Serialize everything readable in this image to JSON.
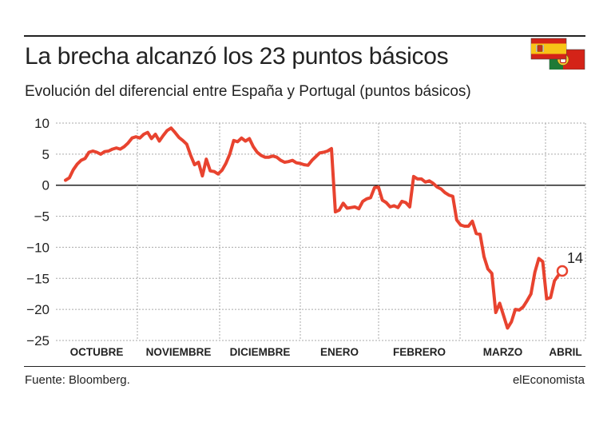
{
  "header": {
    "title": "La brecha alcanzó los 23 puntos básicos",
    "subtitle": "Evolución del diferencial entre España y Portugal (puntos básicos)"
  },
  "footer": {
    "source": "Fuente: Bloomberg.",
    "brand": "elEconomista"
  },
  "flags": [
    "spain-flag-icon",
    "portugal-flag-icon"
  ],
  "colors": {
    "line": "#e8432f",
    "grid": "#aaaaaa",
    "zero_line": "#222222",
    "text": "#222222"
  },
  "chart_data": {
    "type": "line",
    "title": "La brecha alcanzó los 23 puntos básicos",
    "subtitle": "Evolución del diferencial entre España y Portugal (puntos básicos)",
    "months": [
      "OCTUBRE",
      "NOVIEMBRE",
      "DICIEMBRE",
      "ENERO",
      "FEBRERO",
      "MARZO",
      "ABRIL"
    ],
    "yticks": [
      10,
      5,
      0,
      -5,
      -10,
      -15,
      -20,
      -25
    ],
    "ylim": [
      -25,
      10
    ],
    "grid": true,
    "series": [
      {
        "values": [
          0.8,
          1.2,
          2.5,
          3.4,
          4.0,
          4.3,
          5.3,
          5.5,
          5.3,
          5.0,
          5.4,
          5.5,
          5.8,
          6.0,
          5.8,
          6.2,
          6.8,
          7.6,
          7.8,
          7.6,
          8.2,
          8.5,
          7.5,
          8.2,
          7.1,
          8.0,
          8.8,
          9.2,
          8.5,
          7.7,
          7.2,
          6.6,
          4.8,
          3.3,
          3.7,
          1.5,
          4.2,
          2.3,
          2.2,
          1.8,
          2.4,
          3.5,
          5.0,
          7.2,
          7.0,
          7.6,
          7.1,
          7.5,
          6.2,
          5.3,
          4.8,
          4.5,
          4.5,
          4.7,
          4.5,
          4.0,
          3.7,
          3.8,
          4.0,
          3.6,
          3.5,
          3.3,
          3.2,
          4.0,
          4.6,
          5.2,
          5.3,
          5.5,
          5.9,
          -4.3,
          -4.0,
          -2.9,
          -3.7,
          -3.6,
          -3.5,
          -3.8,
          -2.6,
          -2.2,
          -2.0,
          -0.4,
          -0.3,
          -2.4,
          -2.8,
          -3.5,
          -3.3,
          -3.6,
          -2.6,
          -2.8,
          -3.5,
          1.4,
          1.0,
          1.0,
          0.5,
          0.7,
          0.3,
          -0.3,
          -0.6,
          -1.2,
          -1.6,
          -1.8,
          -5.6,
          -6.4,
          -6.6,
          -6.6,
          -5.8,
          -7.8,
          -7.9,
          -11.5,
          -13.5,
          -14.2,
          -20.5,
          -19.0,
          -21.0,
          -23.0,
          -22.0,
          -20.0,
          -20.1,
          -19.6,
          -18.6,
          -17.5,
          -14.0,
          -11.8,
          -12.3,
          -18.3,
          -18.1,
          -15.4,
          -14.5,
          -13.8
        ]
      }
    ],
    "annotation": {
      "label": "14",
      "value": -13.8
    }
  }
}
